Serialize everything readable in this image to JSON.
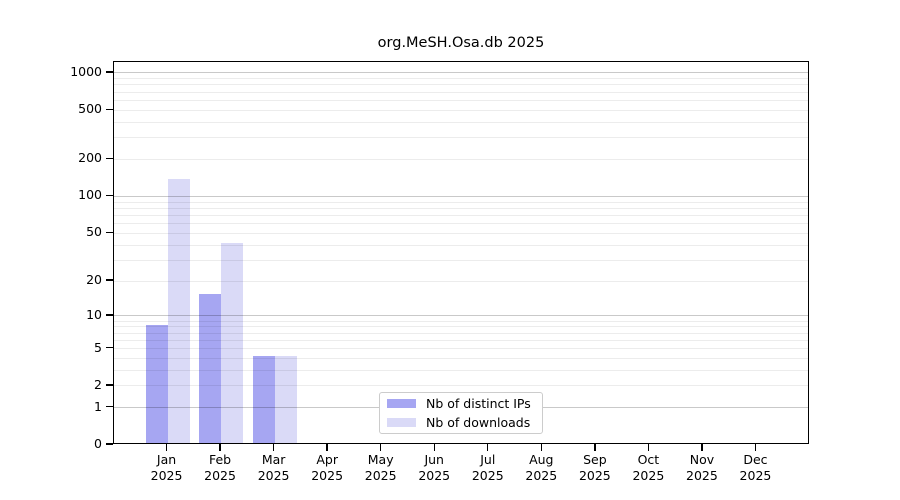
{
  "chart_data": {
    "type": "bar",
    "title": "org.MeSH.Osa.db 2025",
    "categories": [
      "Jan",
      "Feb",
      "Mar",
      "Apr",
      "May",
      "Jun",
      "Jul",
      "Aug",
      "Sep",
      "Oct",
      "Nov",
      "Dec"
    ],
    "x_year_label": "2025",
    "series": [
      {
        "name": "Nb of distinct IPs",
        "color": "#a6a6f2",
        "values": [
          8,
          15,
          4,
          0,
          0,
          0,
          0,
          0,
          0,
          0,
          0,
          0
        ]
      },
      {
        "name": "Nb of downloads",
        "color": "#dadaf7",
        "values": [
          134,
          40,
          4,
          0,
          0,
          0,
          0,
          0,
          0,
          0,
          0,
          0
        ]
      }
    ],
    "y_scale": "log1p",
    "y_ticks": [
      0,
      1,
      2,
      5,
      10,
      20,
      50,
      100,
      200,
      500,
      1000
    ],
    "ylim": [
      0,
      1000
    ],
    "xlabel": "",
    "ylabel": "",
    "grid": "horizontal",
    "legend_position": "bottom-center"
  },
  "colors": {
    "axis": "#000000",
    "grid_minor": "#ececec",
    "grid_major": "#c8c8c8",
    "background": "#ffffff"
  }
}
